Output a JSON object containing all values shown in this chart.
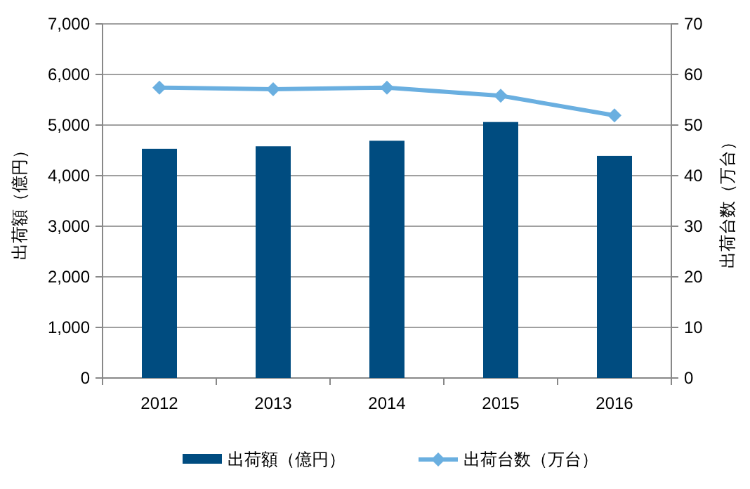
{
  "chart_data": {
    "type": "bar",
    "categories": [
      "2012",
      "2013",
      "2014",
      "2015",
      "2016"
    ],
    "series": [
      {
        "name": "出荷額（億円）",
        "color": "#004c80",
        "values": [
          4530,
          4580,
          4690,
          5060,
          4390
        ]
      },
      {
        "name": "出荷台数（万台）",
        "type": "line",
        "axis": "y2",
        "color": "#6aafe0",
        "marker": "diamond",
        "values": [
          57.4,
          57.1,
          57.4,
          55.8,
          51.9
        ]
      }
    ],
    "ylabel": "出荷額（億円）",
    "y2label": "出荷台数（万台）",
    "ylim": [
      0,
      7000
    ],
    "yticks": [
      {
        "value": 0,
        "label": "0"
      },
      {
        "value": 1000,
        "label": "1,000"
      },
      {
        "value": 2000,
        "label": "2,000"
      },
      {
        "value": 3000,
        "label": "3,000"
      },
      {
        "value": 4000,
        "label": "4,000"
      },
      {
        "value": 5000,
        "label": "5,000"
      },
      {
        "value": 6000,
        "label": "6,000"
      },
      {
        "value": 7000,
        "label": "7,000"
      }
    ],
    "y2lim": [
      0,
      70
    ],
    "y2ticks": [
      0,
      10,
      20,
      30,
      40,
      50,
      60,
      70
    ],
    "grid": "y",
    "legend": "bottom"
  }
}
